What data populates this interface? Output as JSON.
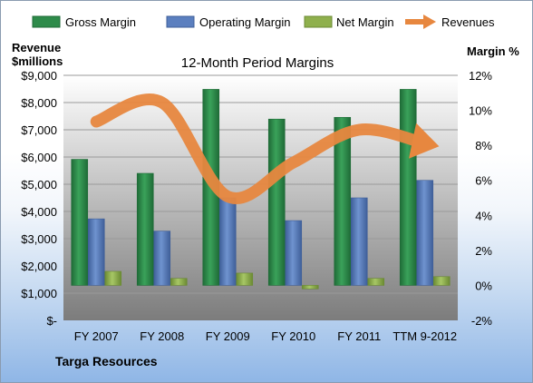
{
  "chart_data": {
    "type": "bar",
    "title": "12-Month Period Margins",
    "left_axis_label": [
      "Revenue",
      "$millions"
    ],
    "right_axis_label": "Margin %",
    "categories": [
      "FY 2007",
      "FY 2008",
      "FY 2009",
      "FY 2010",
      "FY 2011",
      "TTM 9-2012"
    ],
    "left_axis": {
      "ylim": [
        0,
        9000
      ],
      "ticks": [
        "$-",
        "$1,000",
        "$2,000",
        "$3,000",
        "$4,000",
        "$5,000",
        "$6,000",
        "$7,000",
        "$8,000",
        "$9,000"
      ]
    },
    "right_axis": {
      "ylim": [
        -2,
        12
      ],
      "ticks": [
        "-2%",
        "0%",
        "2%",
        "4%",
        "6%",
        "8%",
        "10%",
        "12%"
      ]
    },
    "series": [
      {
        "name": "Gross Margin",
        "kind": "bar",
        "axis": "right",
        "color": "#2e8b4a",
        "values": [
          7.2,
          6.4,
          11.2,
          9.5,
          9.6,
          11.2
        ]
      },
      {
        "name": "Operating Margin",
        "kind": "bar",
        "axis": "right",
        "color": "#5b7fbf",
        "values": [
          3.8,
          3.1,
          5.0,
          3.7,
          5.0,
          6.0
        ]
      },
      {
        "name": "Net Margin",
        "kind": "bar",
        "axis": "right",
        "color": "#8fb04d",
        "values": [
          0.8,
          0.4,
          0.7,
          -0.2,
          0.4,
          0.5
        ]
      },
      {
        "name": "Revenues",
        "kind": "line",
        "axis": "left",
        "color": "#e7873f",
        "values": [
          7300,
          8000,
          4550,
          5800,
          7000,
          6500
        ]
      }
    ],
    "grid": true,
    "legend": "top"
  },
  "footer": {
    "company": "Targa Resources"
  }
}
